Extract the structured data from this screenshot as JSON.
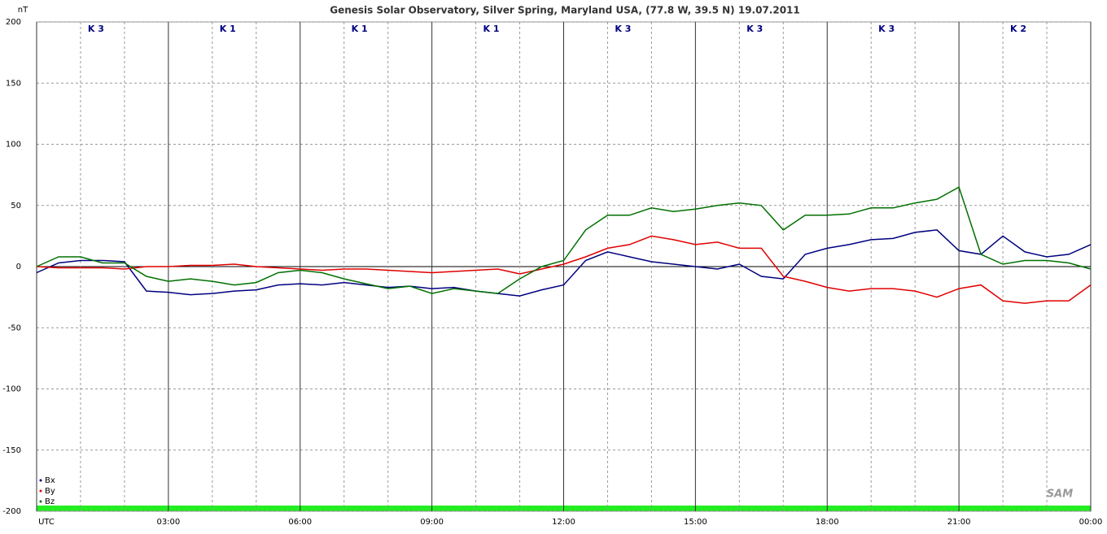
{
  "chart_data": {
    "type": "line",
    "title": "Genesis Solar Observatory, Silver Spring, Maryland USA, (77.8 W, 39.5 N)  19.07.2011",
    "y_label": "nT",
    "logo": "SAM",
    "k_indices": [
      "K 3",
      "K 1",
      "K 1",
      "K 1",
      "K 3",
      "K 3",
      "K 3",
      "K 2"
    ],
    "x": [
      0,
      0.5,
      1,
      1.5,
      2,
      2.5,
      3,
      3.5,
      4,
      4.5,
      5,
      5.5,
      6,
      6.5,
      7,
      7.5,
      8,
      8.5,
      9,
      9.5,
      10,
      10.5,
      11,
      11.5,
      12,
      12.5,
      13,
      13.5,
      14,
      14.5,
      15,
      15.5,
      16,
      16.5,
      17,
      17.5,
      18,
      18.5,
      19,
      19.5,
      20,
      20.5,
      21,
      21.5,
      22,
      22.5,
      23,
      23.5,
      24
    ],
    "series": [
      {
        "name": "Bx",
        "color": "#000080",
        "values": [
          -5,
          3,
          5,
          5,
          4,
          -20,
          -21,
          -23,
          -22,
          -20,
          -19,
          -15,
          -14,
          -15,
          -13,
          -15,
          -17,
          -16,
          -18,
          -17,
          -20,
          -22,
          -24,
          -19,
          -15,
          5,
          12,
          8,
          4,
          2,
          0,
          -2,
          2,
          -8,
          -10,
          10,
          15,
          18,
          22,
          23,
          28,
          30,
          13,
          10,
          25,
          12,
          8,
          10,
          18
        ]
      },
      {
        "name": "By",
        "color": "#e00000",
        "values": [
          0,
          -1,
          -1,
          -1,
          -2,
          0,
          0,
          1,
          1,
          2,
          0,
          -1,
          -2,
          -3,
          -2,
          -2,
          -3,
          -4,
          -5,
          -4,
          -3,
          -2,
          -6,
          -2,
          2,
          8,
          15,
          18,
          25,
          22,
          18,
          20,
          15,
          15,
          -8,
          -12,
          -17,
          -20,
          -18,
          -18,
          -20,
          -25,
          -18,
          -15,
          -28,
          -30,
          -28,
          -28,
          -15
        ]
      },
      {
        "name": "Bz",
        "color": "#007000",
        "values": [
          0,
          8,
          8,
          3,
          3,
          -8,
          -12,
          -10,
          -12,
          -15,
          -13,
          -5,
          -3,
          -5,
          -10,
          -14,
          -18,
          -16,
          -22,
          -18,
          -20,
          -22,
          -10,
          0,
          5,
          30,
          42,
          42,
          48,
          45,
          47,
          50,
          52,
          50,
          30,
          42,
          42,
          43,
          48,
          48,
          52,
          55,
          65,
          10,
          2,
          5,
          5,
          3,
          -2
        ]
      }
    ],
    "xlim": [
      0,
      24
    ],
    "xticks": [
      {
        "value": 0,
        "label": "UTC"
      },
      {
        "value": 3,
        "label": "03:00"
      },
      {
        "value": 6,
        "label": "06:00"
      },
      {
        "value": 9,
        "label": "09:00"
      },
      {
        "value": 12,
        "label": "12:00"
      },
      {
        "value": 15,
        "label": "15:00"
      },
      {
        "value": 18,
        "label": "18:00"
      },
      {
        "value": 21,
        "label": "21:00"
      },
      {
        "value": 24,
        "label": "00:00"
      }
    ],
    "xminor": [
      1,
      2,
      4,
      5,
      7,
      8,
      10,
      11,
      13,
      14,
      16,
      17,
      19,
      20,
      22,
      23
    ],
    "ylim": [
      -200,
      200
    ],
    "yticks": [
      -200,
      -150,
      -100,
      -50,
      0,
      50,
      100,
      150,
      200
    ],
    "grid": true
  }
}
